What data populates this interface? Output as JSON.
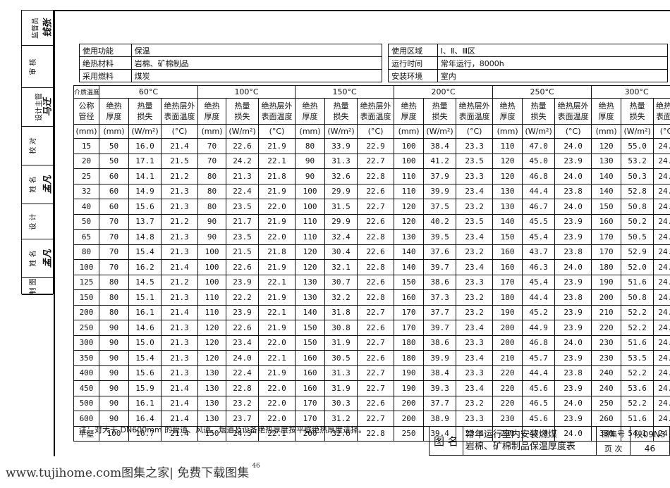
{
  "stamp": {
    "rows": [
      {
        "label": "监督员",
        "sig": "钱张"
      },
      {
        "label": "审 核",
        "sig": ""
      },
      {
        "label": "设计主管",
        "sig": "马迁"
      },
      {
        "label": "校 对",
        "sig": ""
      },
      {
        "label": "姓 名",
        "sig": "孟凡"
      },
      {
        "label": "设 计",
        "sig": ""
      },
      {
        "label": "姓 名",
        "sig": "孟凡"
      },
      {
        "label": "制 图",
        "sig": ""
      }
    ]
  },
  "info": {
    "use_function_label": "使用功能",
    "use_function": "保温",
    "material_label": "绝热材料",
    "material": "岩棉、矿棉制品",
    "fuel_label": "采用燃料",
    "fuel": "煤炭",
    "region_label": "使用区域",
    "region": "Ⅰ、Ⅱ、Ⅲ区",
    "runtime_label": "运行时间",
    "runtime": "常年运行，8000h",
    "env_label": "安装环境",
    "env": "室内"
  },
  "table": {
    "medium_temp_label": "介质温度",
    "diameter_label": "公称管径",
    "temperatures": [
      "60°C",
      "100°C",
      "150°C",
      "200°C",
      "250°C",
      "300°C"
    ],
    "sub_headers": [
      "绝热厚度",
      "热量损失",
      "绝热层外表面温度"
    ],
    "units": {
      "dia": "(mm)",
      "thick": "(mm)",
      "loss": "(W/m²)",
      "temp": "(°C)"
    },
    "rows": [
      [
        "15",
        "50",
        "16.0",
        "21.4",
        "70",
        "22.6",
        "21.9",
        "80",
        "33.9",
        "22.9",
        "100",
        "38.4",
        "23.3",
        "110",
        "47.0",
        "24.0",
        "120",
        "55.0",
        "24.7"
      ],
      [
        "20",
        "50",
        "17.1",
        "21.5",
        "70",
        "24.2",
        "22.1",
        "90",
        "31.3",
        "22.7",
        "100",
        "41.2",
        "23.5",
        "120",
        "45.0",
        "23.9",
        "130",
        "53.2",
        "24.6"
      ],
      [
        "25",
        "60",
        "14.1",
        "21.2",
        "80",
        "21.3",
        "21.8",
        "90",
        "32.6",
        "22.8",
        "110",
        "37.9",
        "23.3",
        "120",
        "46.8",
        "24.0",
        "140",
        "50.3",
        "24.3"
      ],
      [
        "32",
        "60",
        "14.9",
        "21.3",
        "80",
        "22.4",
        "21.9",
        "100",
        "29.9",
        "22.6",
        "110",
        "39.9",
        "23.4",
        "130",
        "44.4",
        "23.8",
        "140",
        "52.8",
        "24.5"
      ],
      [
        "40",
        "60",
        "15.6",
        "21.3",
        "80",
        "23.5",
        "22.0",
        "100",
        "31.5",
        "22.7",
        "120",
        "37.5",
        "23.2",
        "130",
        "46.7",
        "24.0",
        "150",
        "50.8",
        "24.4"
      ],
      [
        "50",
        "70",
        "13.7",
        "21.2",
        "90",
        "21.7",
        "21.9",
        "110",
        "29.9",
        "22.6",
        "120",
        "40.2",
        "23.5",
        "140",
        "45.5",
        "23.9",
        "160",
        "50.2",
        "24.3"
      ],
      [
        "65",
        "70",
        "14.8",
        "21.3",
        "90",
        "23.5",
        "22.0",
        "110",
        "32.4",
        "22.8",
        "130",
        "39.5",
        "23.4",
        "150",
        "45.4",
        "23.9",
        "170",
        "50.5",
        "24.3"
      ],
      [
        "80",
        "70",
        "15.4",
        "21.3",
        "100",
        "21.5",
        "21.8",
        "120",
        "30.4",
        "22.6",
        "140",
        "37.6",
        "23.2",
        "160",
        "43.7",
        "23.8",
        "170",
        "52.9",
        "24.5"
      ],
      [
        "100",
        "70",
        "16.2",
        "21.4",
        "100",
        "22.6",
        "21.9",
        "120",
        "32.1",
        "22.8",
        "140",
        "39.7",
        "23.4",
        "160",
        "46.3",
        "24.0",
        "180",
        "52.0",
        "24.5"
      ],
      [
        "125",
        "80",
        "14.5",
        "21.2",
        "100",
        "23.9",
        "22.1",
        "130",
        "30.7",
        "22.6",
        "150",
        "38.6",
        "23.3",
        "170",
        "45.4",
        "23.9",
        "190",
        "51.6",
        "24.4"
      ],
      [
        "150",
        "80",
        "15.1",
        "21.3",
        "110",
        "22.2",
        "21.9",
        "130",
        "32.2",
        "22.8",
        "160",
        "37.3",
        "23.2",
        "180",
        "44.4",
        "23.8",
        "200",
        "50.8",
        "24.4"
      ],
      [
        "200",
        "80",
        "16.1",
        "21.4",
        "110",
        "23.9",
        "22.1",
        "140",
        "31.8",
        "22.7",
        "170",
        "37.7",
        "23.2",
        "190",
        "45.2",
        "23.9",
        "210",
        "52.2",
        "24.5"
      ],
      [
        "250",
        "90",
        "14.6",
        "21.3",
        "120",
        "22.6",
        "21.9",
        "150",
        "30.8",
        "22.6",
        "170",
        "39.7",
        "23.4",
        "200",
        "44.9",
        "23.9",
        "220",
        "52.2",
        "24.5"
      ],
      [
        "300",
        "90",
        "15.0",
        "21.3",
        "120",
        "23.4",
        "22.0",
        "150",
        "31.9",
        "22.7",
        "180",
        "38.6",
        "23.3",
        "200",
        "46.8",
        "24.0",
        "230",
        "51.6",
        "24.4"
      ],
      [
        "350",
        "90",
        "15.4",
        "21.3",
        "120",
        "24.0",
        "22.1",
        "160",
        "30.5",
        "22.6",
        "180",
        "39.9",
        "23.4",
        "210",
        "45.7",
        "23.9",
        "230",
        "53.5",
        "24.6"
      ],
      [
        "400",
        "90",
        "15.6",
        "21.3",
        "130",
        "22.4",
        "21.9",
        "160",
        "31.3",
        "22.7",
        "190",
        "38.4",
        "23.3",
        "220",
        "44.4",
        "23.8",
        "240",
        "52.2",
        "24.5"
      ],
      [
        "450",
        "90",
        "15.9",
        "21.4",
        "130",
        "22.8",
        "22.0",
        "160",
        "31.9",
        "22.7",
        "190",
        "39.3",
        "23.4",
        "220",
        "45.6",
        "23.9",
        "240",
        "53.6",
        "24.6"
      ],
      [
        "500",
        "90",
        "16.1",
        "21.4",
        "130",
        "23.2",
        "22.0",
        "170",
        "30.3",
        "22.6",
        "200",
        "37.7",
        "23.2",
        "220",
        "46.5",
        "24.0",
        "250",
        "52.2",
        "24.5"
      ],
      [
        "600",
        "90",
        "16.4",
        "21.4",
        "130",
        "23.7",
        "22.0",
        "170",
        "31.2",
        "22.7",
        "200",
        "38.9",
        "23.3",
        "230",
        "45.6",
        "23.9",
        "260",
        "51.6",
        "24.4"
      ],
      [
        "平壁",
        "100",
        "16.7",
        "21.4",
        "150",
        "24.3",
        "22.1",
        "200",
        "32.6",
        "22.8",
        "250",
        "39.4",
        "23.4",
        "290",
        "47.0",
        "24.0",
        "330",
        "54.1",
        "24.6"
      ]
    ]
  },
  "note": "注：对大于 DN600mm 的管道、风道、烟道及设备绝热厚度按平壁绝热厚度选择。",
  "title_block": {
    "name_label": "图 名",
    "name_line1": "常年运行室内安装燃煤",
    "name_line2": "岩棉、矿棉制品保温厚度表",
    "atlas_label": "图集号",
    "atlas_no": "陕09N3",
    "page_label": "页 次",
    "page_no": "46"
  },
  "footer": {
    "text": "www.tujihome.com图集之家| 免费下载图集",
    "page": "46"
  }
}
